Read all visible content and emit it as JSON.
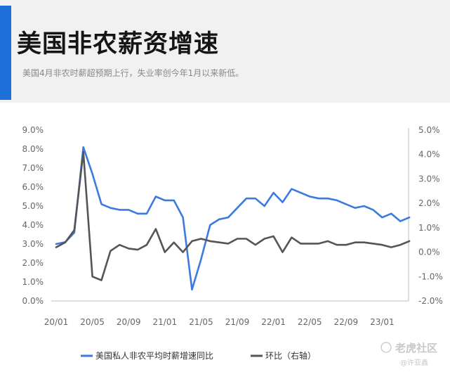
{
  "header": {
    "title": "美国非农薪资增速",
    "subtitle": "美国4月非农时薪超预期上行，失业率创今年1月以来新低。"
  },
  "watermark": {
    "brand": "老虎社区",
    "handle": "@许亚鑫"
  },
  "colors": {
    "accent": "#1f6fd8",
    "series_yoy": "#3b7be0",
    "series_mom": "#555555",
    "header_bg": "#f1f1f1"
  },
  "chart_data": {
    "type": "line",
    "x_labels": [
      "20/01",
      "20/05",
      "20/09",
      "21/01",
      "21/05",
      "21/09",
      "22/01",
      "22/05",
      "22/09",
      "23/01"
    ],
    "x_start": "2020-01",
    "left_axis": {
      "ticks": [
        "9.0%",
        "8.0%",
        "7.0%",
        "6.0%",
        "5.0%",
        "4.0%",
        "3.0%",
        "2.0%",
        "1.0%",
        "0.0%"
      ],
      "min": 0,
      "max": 9
    },
    "right_axis": {
      "ticks": [
        "5.0%",
        "4.0%",
        "3.0%",
        "2.0%",
        "1.0%",
        "0.0%",
        "-1.0%",
        "-2.0%"
      ],
      "min": -2,
      "max": 5
    },
    "series": [
      {
        "name": "美国私人非农平均时薪增速同比",
        "axis": "left",
        "values": [
          3.0,
          3.1,
          3.6,
          8.1,
          6.7,
          5.1,
          4.9,
          4.8,
          4.8,
          4.6,
          4.6,
          5.5,
          5.3,
          5.3,
          4.4,
          0.6,
          2.2,
          4.0,
          4.3,
          4.4,
          4.9,
          5.4,
          5.4,
          5.0,
          5.7,
          5.2,
          5.9,
          5.7,
          5.5,
          5.4,
          5.4,
          5.3,
          5.1,
          4.9,
          5.0,
          4.8,
          4.4,
          4.6,
          4.2,
          4.4
        ]
      },
      {
        "name": "环比（右轴）",
        "axis": "right",
        "values": [
          0.2,
          0.4,
          0.9,
          4.1,
          -1.0,
          -1.15,
          0.05,
          0.3,
          0.15,
          0.1,
          0.3,
          0.95,
          0.0,
          0.4,
          0.0,
          0.45,
          0.55,
          0.45,
          0.4,
          0.35,
          0.55,
          0.55,
          0.3,
          0.55,
          0.65,
          0.0,
          0.6,
          0.35,
          0.35,
          0.35,
          0.45,
          0.3,
          0.3,
          0.4,
          0.4,
          0.35,
          0.3,
          0.2,
          0.3,
          0.45
        ]
      }
    ]
  }
}
